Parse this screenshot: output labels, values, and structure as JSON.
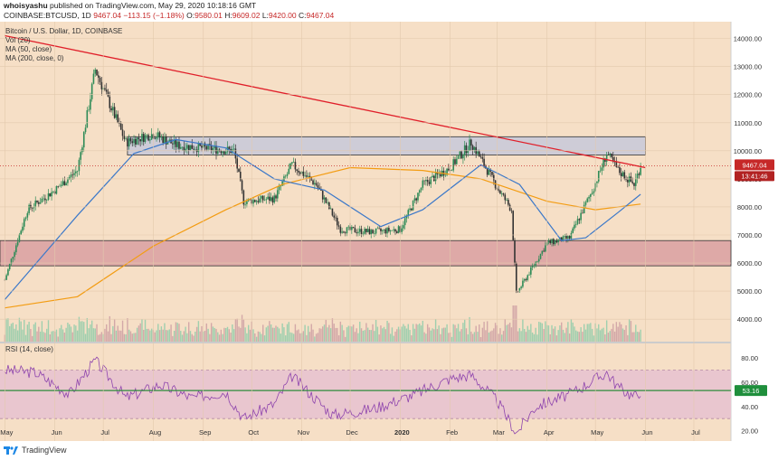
{
  "header": {
    "author": "whoisyashu",
    "published": "published on TradingView.com, May 29, 2020 10:18:16 GMT",
    "symbol": "COINBASE:BTCUSD, 1D",
    "last": "9467.04",
    "change": "−113.15 (−1.18%)",
    "o_label": "O:",
    "o": "9580.01",
    "h_label": "H:",
    "h": "9609.02",
    "l_label": "L:",
    "l": "9420.00",
    "c_label": "C:",
    "c": "9467.04"
  },
  "legend": {
    "title": "Bitcoin / U.S. Dollar, 1D, COINBASE",
    "vol": "Vol (20)",
    "ma50": "MA (50, close)",
    "ma200": "MA (200, close, 0)"
  },
  "rsi_legend": "RSI (14, close)",
  "price_tag": "9467.04",
  "countdown_tag": "13:41:46",
  "rsi_tag": "53.16",
  "footer": {
    "brand": "TradingView"
  },
  "colors": {
    "panel_bg": "#f6dfc6",
    "bull": "#2e8b57",
    "bear": "#333333",
    "ma50": "#3b78c9",
    "ma200": "#f39c12",
    "trendline": "#e01f2a",
    "resistance_zone": "#c7c9d9",
    "support_zone": "#dba3a3",
    "rsi_line": "#8e44ad",
    "rsi_band": "#e8c3cf",
    "rsi_signal": "#2e8b3c",
    "price_tag": "#c62828",
    "rsi_tag": "#1f8f3c"
  },
  "chart_data": {
    "type": "candlestick",
    "price_ticks": [
      14000,
      13000,
      12000,
      11000,
      10000,
      9000,
      8000,
      7000,
      6000,
      5000,
      4000
    ],
    "rsi_ticks": [
      80,
      60,
      40,
      20
    ],
    "x_ticks": [
      "May",
      "Jun",
      "Jul",
      "Aug",
      "Sep",
      "Oct",
      "Nov",
      "Dec",
      "2020",
      "Feb",
      "Mar",
      "Apr",
      "May",
      "Jun",
      "Jul"
    ],
    "price_range": [
      3200,
      14600
    ],
    "rsi_range": [
      10,
      92
    ],
    "last_price": 9467.04,
    "last_rsi": 53.16,
    "trendline": {
      "from": [
        "2019-05",
        14100
      ],
      "to": [
        "2020-06",
        9400
      ]
    },
    "resistance_zone": [
      9850,
      10500
    ],
    "support_zone": [
      5900,
      6800
    ],
    "rsi_band": [
      30,
      70
    ],
    "price_path": [
      [
        "2019-05-01",
        5400
      ],
      [
        "2019-05-15",
        7900
      ],
      [
        "2019-06-01",
        8600
      ],
      [
        "2019-06-15",
        9300
      ],
      [
        "2019-06-26",
        12900
      ],
      [
        "2019-07-15",
        10300
      ],
      [
        "2019-08-01",
        10600
      ],
      [
        "2019-08-15",
        10200
      ],
      [
        "2019-09-01",
        10100
      ],
      [
        "2019-09-20",
        10000
      ],
      [
        "2019-09-26",
        8200
      ],
      [
        "2019-10-15",
        8300
      ],
      [
        "2019-10-26",
        9500
      ],
      [
        "2019-11-10",
        8800
      ],
      [
        "2019-11-25",
        7200
      ],
      [
        "2019-12-15",
        7100
      ],
      [
        "2020-01-01",
        7200
      ],
      [
        "2020-01-15",
        8800
      ],
      [
        "2020-02-01",
        9400
      ],
      [
        "2020-02-14",
        10300
      ],
      [
        "2020-03-01",
        8700
      ],
      [
        "2020-03-10",
        7900
      ],
      [
        "2020-03-13",
        4900
      ],
      [
        "2020-04-01",
        6700
      ],
      [
        "2020-04-15",
        6900
      ],
      [
        "2020-04-30",
        8700
      ],
      [
        "2020-05-08",
        9900
      ],
      [
        "2020-05-15",
        9300
      ],
      [
        "2020-05-25",
        8800
      ],
      [
        "2020-05-29",
        9467
      ]
    ],
    "ma50_path": [
      [
        "2019-05-01",
        4700
      ],
      [
        "2019-06-15",
        7700
      ],
      [
        "2019-07-20",
        9900
      ],
      [
        "2019-08-15",
        10400
      ],
      [
        "2019-09-15",
        10100
      ],
      [
        "2019-10-15",
        9000
      ],
      [
        "2019-11-15",
        8600
      ],
      [
        "2019-12-20",
        7300
      ],
      [
        "2020-01-15",
        7900
      ],
      [
        "2020-02-20",
        9500
      ],
      [
        "2020-03-15",
        8800
      ],
      [
        "2020-04-10",
        6800
      ],
      [
        "2020-04-25",
        6900
      ],
      [
        "2020-05-15",
        7800
      ],
      [
        "2020-05-29",
        8450
      ]
    ],
    "ma200_path": [
      [
        "2019-05-01",
        4400
      ],
      [
        "2019-06-15",
        4800
      ],
      [
        "2019-08-01",
        6600
      ],
      [
        "2019-09-15",
        7900
      ],
      [
        "2019-10-20",
        8800
      ],
      [
        "2019-12-01",
        9400
      ],
      [
        "2020-01-15",
        9300
      ],
      [
        "2020-02-20",
        9000
      ],
      [
        "2020-04-01",
        8200
      ],
      [
        "2020-05-01",
        7900
      ],
      [
        "2020-05-29",
        8100
      ]
    ],
    "rsi_path": [
      [
        "2019-05-01",
        70
      ],
      [
        "2019-05-20",
        68
      ],
      [
        "2019-06-10",
        50
      ],
      [
        "2019-06-26",
        78
      ],
      [
        "2019-07-15",
        47
      ],
      [
        "2019-08-05",
        58
      ],
      [
        "2019-08-25",
        47
      ],
      [
        "2019-09-15",
        52
      ],
      [
        "2019-09-26",
        30
      ],
      [
        "2019-10-15",
        42
      ],
      [
        "2019-10-26",
        65
      ],
      [
        "2019-11-20",
        33
      ],
      [
        "2019-12-15",
        38
      ],
      [
        "2020-01-10",
        50
      ],
      [
        "2020-02-01",
        63
      ],
      [
        "2020-02-14",
        66
      ],
      [
        "2020-03-01",
        45
      ],
      [
        "2020-03-13",
        18
      ],
      [
        "2020-03-25",
        40
      ],
      [
        "2020-04-15",
        50
      ],
      [
        "2020-05-08",
        68
      ],
      [
        "2020-05-15",
        56
      ],
      [
        "2020-05-25",
        48
      ],
      [
        "2020-05-29",
        53
      ]
    ]
  }
}
